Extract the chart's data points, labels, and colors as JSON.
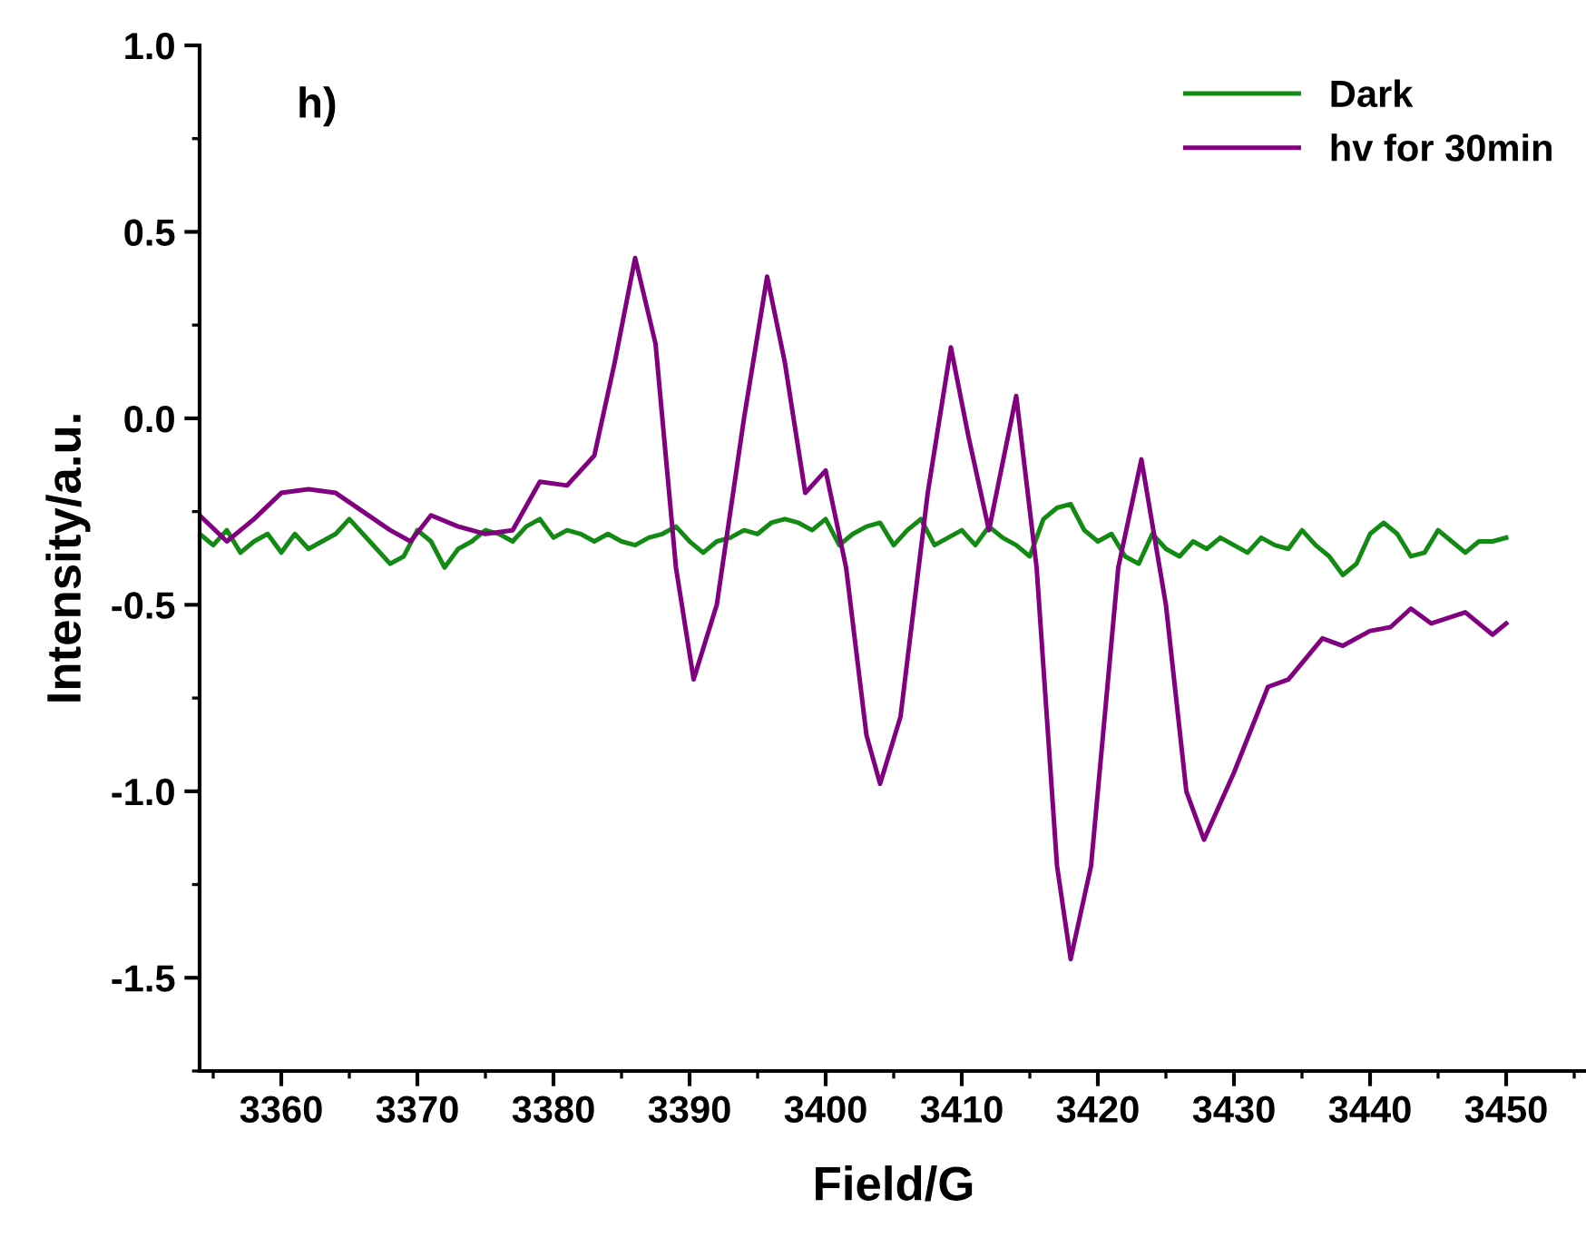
{
  "chart_data": {
    "type": "line",
    "xlabel": "Field/G",
    "ylabel": "Intensity/a.u.",
    "annotations": [
      "h)"
    ],
    "xlim": [
      3354,
      3456
    ],
    "ylim": [
      -1.75,
      1.0
    ],
    "xticks": [
      3360,
      3370,
      3380,
      3390,
      3400,
      3410,
      3420,
      3430,
      3440,
      3450
    ],
    "yticks": [
      {
        "value": -1.5,
        "label": "-1.5"
      },
      {
        "value": -1.0,
        "label": "-1.0"
      },
      {
        "value": -0.5,
        "label": "-0.5"
      },
      {
        "value": 0.0,
        "label": "0.0"
      },
      {
        "value": 0.5,
        "label": "0.5"
      },
      {
        "value": 1.0,
        "label": "1.0"
      }
    ],
    "grid": false,
    "legend": "top right",
    "line_style": "solid",
    "marker": "none",
    "series": [
      {
        "name": "Dark",
        "color": "#138a13",
        "x": [
          3354,
          3355,
          3356,
          3357,
          3358,
          3359,
          3360,
          3361,
          3362,
          3363,
          3364,
          3365,
          3366,
          3367,
          3368,
          3369,
          3370,
          3371,
          3372,
          3373,
          3374,
          3375,
          3376,
          3377,
          3378,
          3379,
          3380,
          3381,
          3382,
          3383,
          3384,
          3385,
          3386,
          3387,
          3388,
          3389,
          3390,
          3391,
          3392,
          3393,
          3394,
          3395,
          3396,
          3397,
          3398,
          3399,
          3400,
          3401,
          3402,
          3403,
          3404,
          3405,
          3406,
          3407,
          3408,
          3409,
          3410,
          3411,
          3412,
          3413,
          3414,
          3415,
          3416,
          3417,
          3418,
          3419,
          3420,
          3421,
          3422,
          3423,
          3424,
          3425,
          3426,
          3427,
          3428,
          3429,
          3430,
          3431,
          3432,
          3433,
          3434,
          3435,
          3436,
          3437,
          3438,
          3439,
          3440,
          3441,
          3442,
          3443,
          3444,
          3445,
          3446,
          3447,
          3448,
          3449,
          3450
        ],
        "values": [
          -0.31,
          -0.34,
          -0.3,
          -0.36,
          -0.33,
          -0.31,
          -0.36,
          -0.31,
          -0.35,
          -0.33,
          -0.31,
          -0.27,
          -0.31,
          -0.35,
          -0.39,
          -0.37,
          -0.3,
          -0.33,
          -0.4,
          -0.35,
          -0.33,
          -0.3,
          -0.31,
          -0.33,
          -0.29,
          -0.27,
          -0.32,
          -0.3,
          -0.31,
          -0.33,
          -0.31,
          -0.33,
          -0.34,
          -0.32,
          -0.31,
          -0.29,
          -0.33,
          -0.36,
          -0.33,
          -0.32,
          -0.3,
          -0.31,
          -0.28,
          -0.27,
          -0.28,
          -0.3,
          -0.27,
          -0.34,
          -0.31,
          -0.29,
          -0.28,
          -0.34,
          -0.3,
          -0.27,
          -0.34,
          -0.32,
          -0.3,
          -0.34,
          -0.29,
          -0.32,
          -0.34,
          -0.37,
          -0.27,
          -0.24,
          -0.23,
          -0.3,
          -0.33,
          -0.31,
          -0.37,
          -0.39,
          -0.31,
          -0.35,
          -0.37,
          -0.33,
          -0.35,
          -0.32,
          -0.34,
          -0.36,
          -0.32,
          -0.34,
          -0.35,
          -0.3,
          -0.34,
          -0.37,
          -0.42,
          -0.39,
          -0.31,
          -0.28,
          -0.31,
          -0.37,
          -0.36,
          -0.3,
          -0.33,
          -0.36,
          -0.33,
          -0.33,
          -0.32
        ]
      },
      {
        "name": "hv for 30min",
        "color": "#800080",
        "x": [
          3354,
          3356,
          3358,
          3360,
          3362,
          3364,
          3366,
          3368,
          3369.5,
          3371,
          3373,
          3375,
          3377,
          3379,
          3381,
          3383,
          3384.5,
          3386,
          3387.5,
          3389,
          3390.3,
          3392,
          3394,
          3395.7,
          3397,
          3398.5,
          3400,
          3401.5,
          3403,
          3404,
          3405.5,
          3407.5,
          3409.2,
          3410.5,
          3412,
          3414,
          3415.5,
          3417,
          3418,
          3419.5,
          3421.5,
          3423.2,
          3425,
          3426.5,
          3427.8,
          3430,
          3432.5,
          3434,
          3436.5,
          3438,
          3440,
          3441.5,
          3443,
          3444.5,
          3447,
          3449,
          3450
        ],
        "values": [
          -0.26,
          -0.33,
          -0.27,
          -0.2,
          -0.19,
          -0.2,
          -0.25,
          -0.3,
          -0.33,
          -0.26,
          -0.29,
          -0.31,
          -0.3,
          -0.17,
          -0.18,
          -0.1,
          0.15,
          0.43,
          0.2,
          -0.4,
          -0.7,
          -0.5,
          0.0,
          0.38,
          0.15,
          -0.2,
          -0.14,
          -0.4,
          -0.85,
          -0.98,
          -0.8,
          -0.2,
          0.19,
          -0.05,
          -0.3,
          0.06,
          -0.4,
          -1.2,
          -1.45,
          -1.2,
          -0.4,
          -0.11,
          -0.5,
          -1.0,
          -1.13,
          -0.95,
          -0.72,
          -0.7,
          -0.59,
          -0.61,
          -0.57,
          -0.56,
          -0.51,
          -0.55,
          -0.52,
          -0.58,
          -0.55
        ]
      }
    ]
  }
}
